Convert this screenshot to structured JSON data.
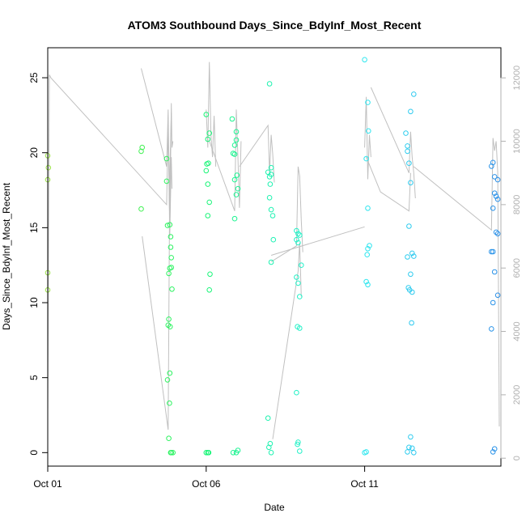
{
  "chart_data": {
    "type": "scatter",
    "title": "ATOM3 Southbound Days_Since_BdyInf_Most_Recent",
    "xlabel": "Date",
    "ylabel": "Days_Since_BdyInf_Most_Recent",
    "x_unit": "days",
    "xlim": [
      0.0,
      14.3
    ],
    "ylim": [
      -0.9,
      27.0
    ],
    "y2lim": [
      -250,
      12950
    ],
    "grid": false,
    "x_ticks": [
      {
        "label": "Oct 01",
        "value": 0
      },
      {
        "label": "Oct 06",
        "value": 5
      },
      {
        "label": "Oct 11",
        "value": 10
      }
    ],
    "y_ticks": [
      0,
      5,
      10,
      15,
      20,
      25
    ],
    "y2_ticks": [
      0,
      2000,
      4000,
      6000,
      8000,
      10000,
      12000
    ],
    "colors": {
      "points_gradient": [
        "#9de34a",
        "#4ff04a",
        "#17f56e",
        "#1ef2b4",
        "#2ef0ef",
        "#2ec3ef",
        "#2a8fe8"
      ],
      "secondary_line": "#c0c0c0",
      "secondary_axis": "#b0b0b0"
    },
    "series": [
      {
        "type": "points",
        "points": [
          [
            0.0,
            19.8
          ],
          [
            0.02,
            19.0
          ],
          [
            0.0,
            18.2
          ],
          [
            0.0,
            12.0
          ],
          [
            0.0,
            10.85
          ],
          [
            2.98,
            20.35
          ],
          [
            2.95,
            20.1
          ],
          [
            2.95,
            16.25
          ],
          [
            3.75,
            19.6
          ],
          [
            3.75,
            18.1
          ],
          [
            3.78,
            15.15
          ],
          [
            3.85,
            15.2
          ],
          [
            3.88,
            14.4
          ],
          [
            3.88,
            13.7
          ],
          [
            3.9,
            13.0
          ],
          [
            3.85,
            12.3
          ],
          [
            3.9,
            12.35
          ],
          [
            3.82,
            11.95
          ],
          [
            3.92,
            10.9
          ],
          [
            3.82,
            8.9
          ],
          [
            3.8,
            8.5
          ],
          [
            3.86,
            8.4
          ],
          [
            3.85,
            5.3
          ],
          [
            3.78,
            4.85
          ],
          [
            3.84,
            3.3
          ],
          [
            3.82,
            0.95
          ],
          [
            3.88,
            0.0
          ],
          [
            3.95,
            0.0
          ],
          [
            3.9,
            0.0
          ],
          [
            5.0,
            22.55
          ],
          [
            5.1,
            21.3
          ],
          [
            5.05,
            20.9
          ],
          [
            5.07,
            19.3
          ],
          [
            5.02,
            19.25
          ],
          [
            5.0,
            18.8
          ],
          [
            5.05,
            17.9
          ],
          [
            5.1,
            16.7
          ],
          [
            5.05,
            15.8
          ],
          [
            5.12,
            11.9
          ],
          [
            5.1,
            10.85
          ],
          [
            5.0,
            0.0
          ],
          [
            5.05,
            0.0
          ],
          [
            5.08,
            0.0
          ],
          [
            5.82,
            22.25
          ],
          [
            5.95,
            21.4
          ],
          [
            5.9,
            20.5
          ],
          [
            5.85,
            19.95
          ],
          [
            5.95,
            20.85
          ],
          [
            5.9,
            19.9
          ],
          [
            5.97,
            18.5
          ],
          [
            5.9,
            18.2
          ],
          [
            6.0,
            17.6
          ],
          [
            5.95,
            17.2
          ],
          [
            5.9,
            15.6
          ],
          [
            5.85,
            0.0
          ],
          [
            5.95,
            0.0
          ],
          [
            6.0,
            0.15
          ],
          [
            7.0,
            24.6
          ],
          [
            7.05,
            19.0
          ],
          [
            6.95,
            18.7
          ],
          [
            7.0,
            18.4
          ],
          [
            7.05,
            18.55
          ],
          [
            7.02,
            17.9
          ],
          [
            7.0,
            17.0
          ],
          [
            7.05,
            16.2
          ],
          [
            7.1,
            15.8
          ],
          [
            7.12,
            14.2
          ],
          [
            7.05,
            12.7
          ],
          [
            6.95,
            2.3
          ],
          [
            7.02,
            0.6
          ],
          [
            6.98,
            0.35
          ],
          [
            7.05,
            0.0
          ],
          [
            7.85,
            14.8
          ],
          [
            7.9,
            14.6
          ],
          [
            7.85,
            14.2
          ],
          [
            7.95,
            14.5
          ],
          [
            7.9,
            14.0
          ],
          [
            8.0,
            12.5
          ],
          [
            7.85,
            11.7
          ],
          [
            7.9,
            11.3
          ],
          [
            7.95,
            10.4
          ],
          [
            7.88,
            8.4
          ],
          [
            7.95,
            8.3
          ],
          [
            7.85,
            4.0
          ],
          [
            7.9,
            0.7
          ],
          [
            7.88,
            0.55
          ],
          [
            7.95,
            0.1
          ],
          [
            10.0,
            26.2
          ],
          [
            10.1,
            23.35
          ],
          [
            10.12,
            21.45
          ],
          [
            10.05,
            19.6
          ],
          [
            10.1,
            16.3
          ],
          [
            10.15,
            13.8
          ],
          [
            10.1,
            13.6
          ],
          [
            10.08,
            13.2
          ],
          [
            10.05,
            11.4
          ],
          [
            10.1,
            11.2
          ],
          [
            10.0,
            0.0
          ],
          [
            10.05,
            0.05
          ],
          [
            11.55,
            23.9
          ],
          [
            11.45,
            22.75
          ],
          [
            11.3,
            21.3
          ],
          [
            11.35,
            20.45
          ],
          [
            11.35,
            20.1
          ],
          [
            11.4,
            19.3
          ],
          [
            11.45,
            18.0
          ],
          [
            11.4,
            15.1
          ],
          [
            11.5,
            13.3
          ],
          [
            11.35,
            13.05
          ],
          [
            11.55,
            13.1
          ],
          [
            11.45,
            11.9
          ],
          [
            11.38,
            11.0
          ],
          [
            11.42,
            10.85
          ],
          [
            11.5,
            10.7
          ],
          [
            11.48,
            8.65
          ],
          [
            11.45,
            1.05
          ],
          [
            11.4,
            0.35
          ],
          [
            11.5,
            0.3
          ],
          [
            11.35,
            0.05
          ],
          [
            11.55,
            0.0
          ],
          [
            14.05,
            19.35
          ],
          [
            14.0,
            19.1
          ],
          [
            14.1,
            18.4
          ],
          [
            14.2,
            18.2
          ],
          [
            14.1,
            17.3
          ],
          [
            14.15,
            17.1
          ],
          [
            14.2,
            16.9
          ],
          [
            14.05,
            16.3
          ],
          [
            14.15,
            14.7
          ],
          [
            14.2,
            14.6
          ],
          [
            14.05,
            13.4
          ],
          [
            14.0,
            13.4
          ],
          [
            14.1,
            12.05
          ],
          [
            14.2,
            10.5
          ],
          [
            14.05,
            10.0
          ],
          [
            14.0,
            8.25
          ],
          [
            14.1,
            0.25
          ],
          [
            14.05,
            0.05
          ]
        ]
      },
      {
        "type": "line",
        "axis": "right",
        "segments": [
          [
            [
              0.0,
              1500
            ],
            [
              0.05,
              12100
            ],
            [
              0.1,
              12000
            ],
            [
              3.75,
              8000
            ],
            [
              3.8,
              10500
            ],
            [
              3.85,
              7000
            ],
            [
              3.9,
              9500
            ],
            [
              3.92,
              8500
            ]
          ],
          [
            [
              2.95,
              12300
            ],
            [
              3.75,
              9200
            ],
            [
              3.8,
              11000
            ],
            [
              3.85,
              7200
            ],
            [
              3.9,
              11200
            ],
            [
              3.92,
              9800
            ],
            [
              3.95,
              10000
            ]
          ],
          [
            [
              2.98,
              7000
            ],
            [
              3.8,
              900
            ],
            [
              3.85,
              9000
            ],
            [
              3.9,
              10900
            ]
          ],
          [
            [
              5.0,
              11000
            ],
            [
              5.05,
              9800
            ],
            [
              5.1,
              12500
            ],
            [
              5.15,
              10200
            ],
            [
              5.2,
              9500
            ],
            [
              5.25,
              10800
            ],
            [
              5.3,
              9200
            ]
          ],
          [
            [
              5.1,
              10000
            ],
            [
              5.9,
              7800
            ],
            [
              5.95,
              11000
            ],
            [
              6.0,
              9500
            ],
            [
              6.05,
              7900
            ],
            [
              6.1,
              10000
            ]
          ],
          [
            [
              6.05,
              9200
            ],
            [
              6.95,
              10500
            ],
            [
              7.0,
              9000
            ],
            [
              7.05,
              10200
            ],
            [
              7.1,
              9600
            ],
            [
              7.15,
              8700
            ]
          ],
          [
            [
              7.05,
              6200
            ],
            [
              7.85,
              6700
            ],
            [
              7.9,
              9200
            ],
            [
              7.95,
              8900
            ],
            [
              8.0,
              7500
            ],
            [
              8.05,
              6500
            ]
          ],
          [
            [
              7.1,
              600
            ],
            [
              7.9,
              5900
            ],
            [
              7.95,
              6800
            ],
            [
              8.0,
              5100
            ]
          ],
          [
            [
              7.05,
              6400
            ],
            [
              10.0,
              7300
            ]
          ],
          [
            [
              10.0,
              9800
            ],
            [
              10.05,
              11400
            ],
            [
              10.1,
              8800
            ],
            [
              10.15,
              10200
            ],
            [
              10.2,
              9500
            ]
          ],
          [
            [
              10.2,
              11700
            ],
            [
              11.4,
              9000
            ],
            [
              11.45,
              10300
            ],
            [
              11.5,
              9500
            ],
            [
              11.55,
              9000
            ],
            [
              11.6,
              8200
            ]
          ],
          [
            [
              10.05,
              9500
            ],
            [
              10.5,
              8400
            ],
            [
              11.4,
              7800
            ],
            [
              11.45,
              9000
            ]
          ],
          [
            [
              11.55,
              9200
            ],
            [
              14.0,
              7200
            ],
            [
              14.05,
              10100
            ],
            [
              14.1,
              9700
            ],
            [
              14.15,
              10000
            ],
            [
              14.2,
              9000
            ],
            [
              14.25,
              1000
            ]
          ]
        ]
      }
    ]
  }
}
